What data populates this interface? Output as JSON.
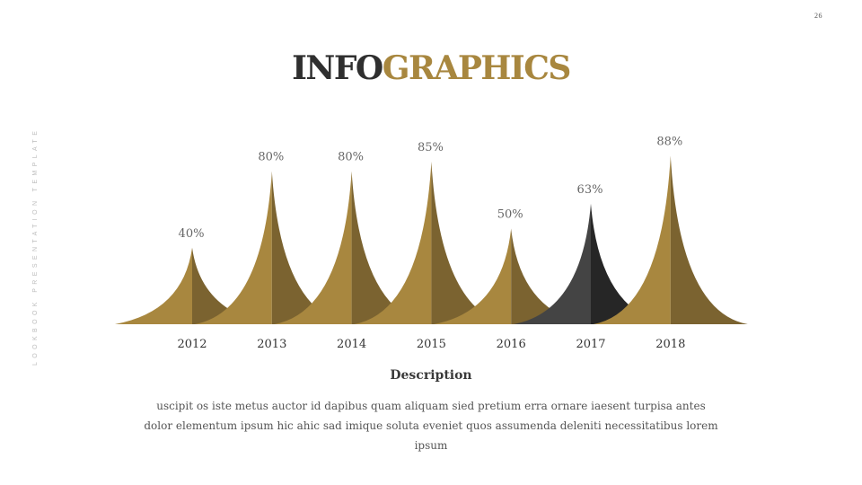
{
  "page_number": "26",
  "side_text": "LOOKBOOK PRESENTATION TEMPLATE",
  "title": {
    "part1": "INFO",
    "part2": "GRAPHICS"
  },
  "chart_data": {
    "type": "area",
    "categories": [
      "2012",
      "2013",
      "2014",
      "2015",
      "2016",
      "2017",
      "2018"
    ],
    "values": [
      40,
      80,
      80,
      85,
      50,
      63,
      88
    ],
    "value_labels": [
      "40%",
      "80%",
      "80%",
      "85%",
      "50%",
      "63%",
      "88%"
    ],
    "unit": "%",
    "ylim": [
      0,
      100
    ],
    "grid": false,
    "colors": {
      "gold_light": "#a8873f",
      "gold_dark": "#7b6330",
      "highlight_light": "#444444",
      "highlight_dark": "#262626"
    },
    "highlight_index": 5
  },
  "description": {
    "title": "Description",
    "body": "uscipit os iste metus auctor id dapibus quam aliquam sied pretium erra ornare iaesent turpisa antes dolor elementum ipsum hic ahic sad imique soluta eveniet quos assumenda deleniti necessitatibus  lorem ipsum"
  }
}
